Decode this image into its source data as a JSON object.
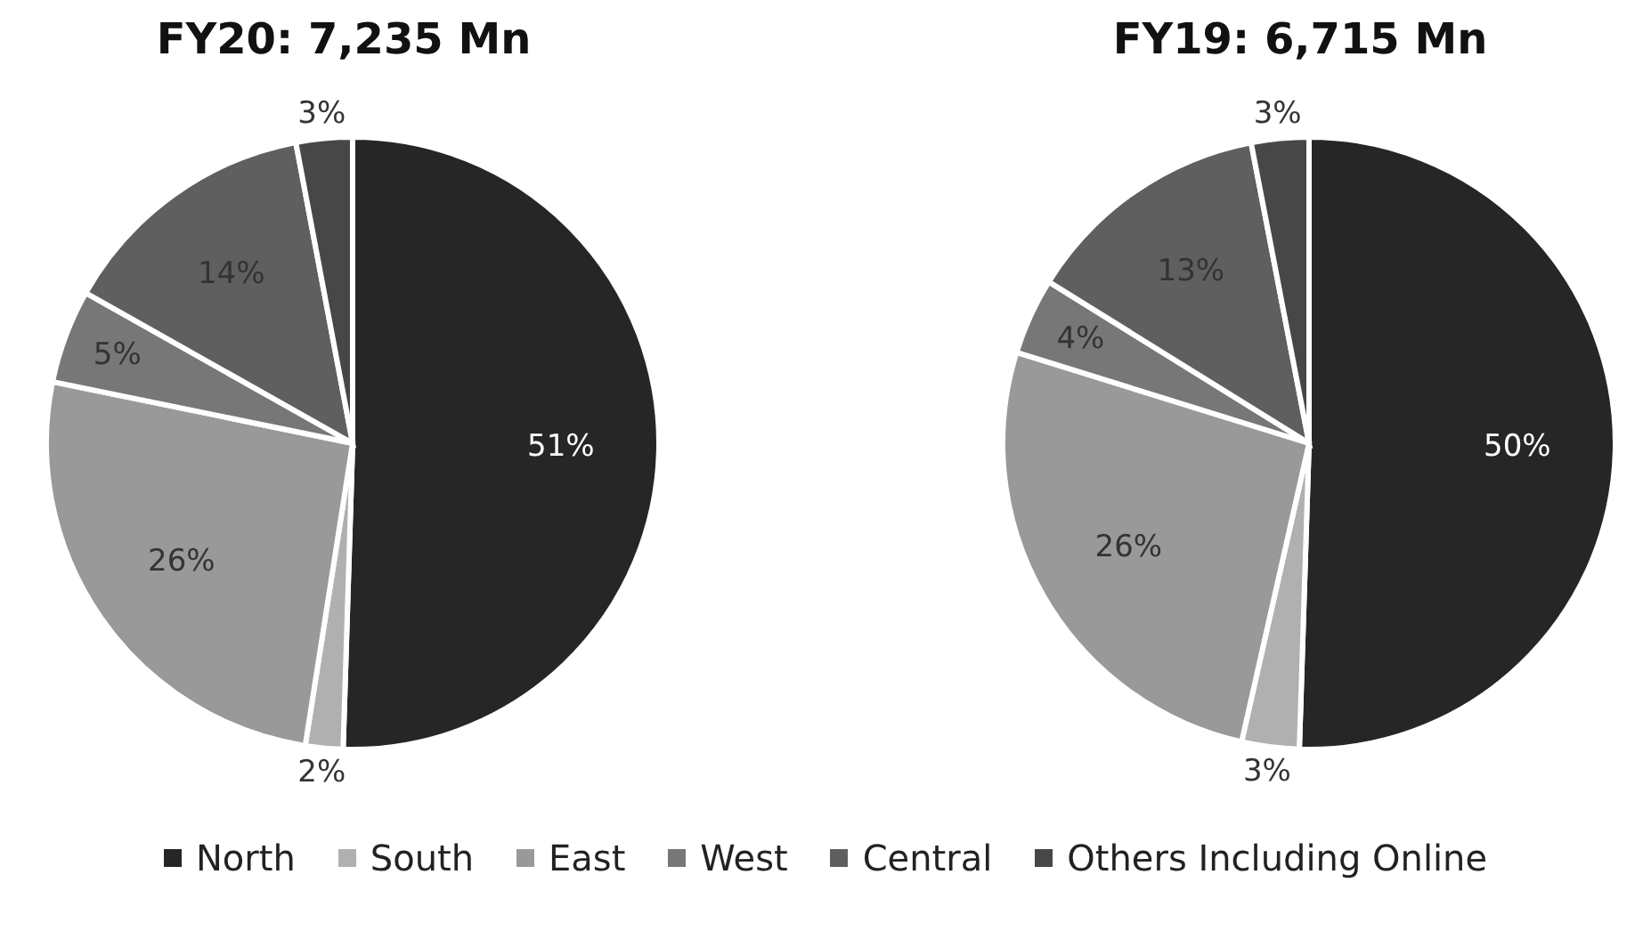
{
  "chart_data": [
    {
      "type": "pie",
      "title": "FY20: 7,235 Mn",
      "categories": [
        "North",
        "South",
        "East",
        "West",
        "Central",
        "Others Including Online"
      ],
      "values": [
        51,
        2,
        26,
        5,
        14,
        3
      ],
      "value_labels": [
        "51%",
        "2%",
        "26%",
        "5%",
        "14%",
        "3%"
      ],
      "colors": [
        "#262626",
        "#b0b0b0",
        "#999999",
        "#777777",
        "#5f5f5f",
        "#474747"
      ],
      "legend": "bottom"
    },
    {
      "type": "pie",
      "title": "FY19: 6,715 Mn",
      "categories": [
        null,
        null,
        null,
        null,
        null,
        null
      ],
      "values": [
        50,
        3,
        26,
        4,
        13,
        3
      ],
      "value_labels": [
        "50%",
        "3%",
        "26%",
        "4%",
        "13%",
        "3%"
      ],
      "colors": [
        "#262626",
        "#b0b0b0",
        "#999999",
        "#777777",
        "#5f5f5f",
        "#474747"
      ]
    }
  ]
}
